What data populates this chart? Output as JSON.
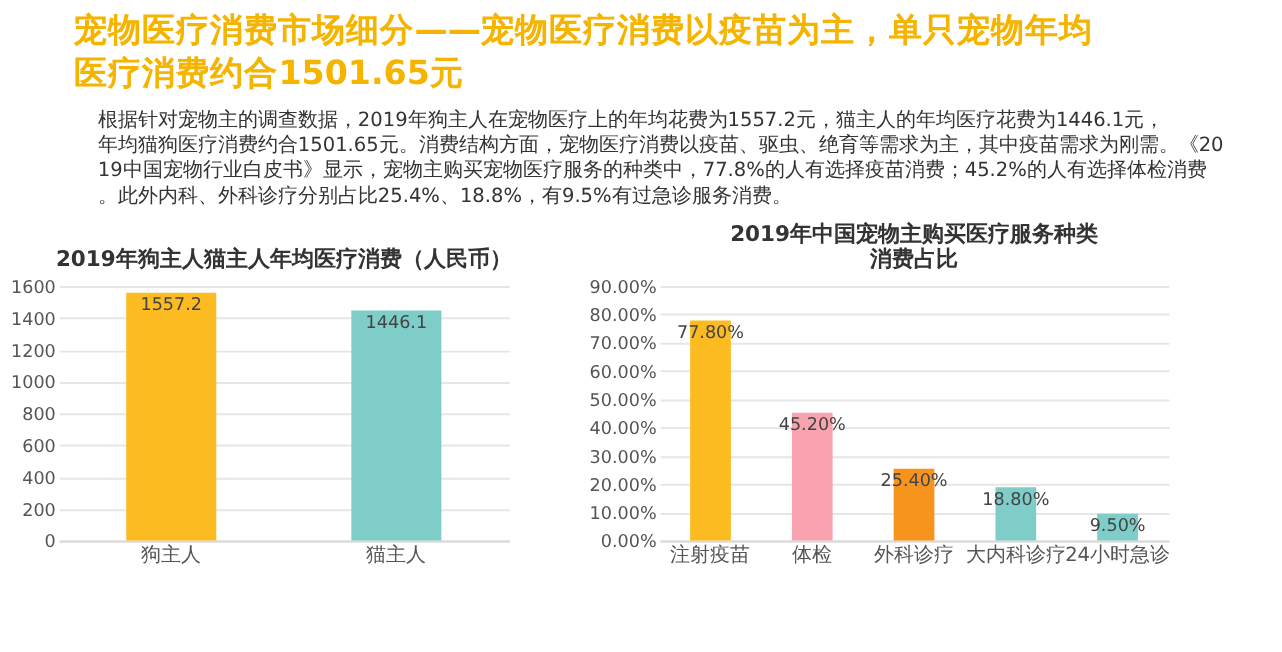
{
  "chart_data": [
    {
      "type": "other",
      "title": "宠物医疗消费市场细分——宠物医疗消费以疫苗为主，单只宠物年均医疗消费约合1501.65元",
      "color": "#f5b400",
      "annotations": [
        "根据针对宠物主的调查数据，2019年狗主人在宠物医疗上的年均花费为1557.2元，猫主人的年均医疗花费为1446.1元，年均猫狗医疗消费约合1501.65元。消费结构方面，宠物医疗消费以疫苗、驱虫、绝育等需求为主，其中疫苗需求为刚需。《2019中国宠物行业白皮书》显示，宠物主购买宠物医疗服务的种类中，77.8%的人有选择疫苗消费；45.2%的人有选择体检消费。此外内科、外科诊疗分别占比25.4%、18.8%，有9.5%有过急诊服务消费。"
      ]
    },
    {
      "type": "bar",
      "title": "2019年狗主人猫主人年均医疗消费（人民币）",
      "categories": [
        "狗主人",
        "猫主人"
      ],
      "values": [
        1557.2,
        1446.1
      ],
      "colors": [
        "#fbbb21",
        "#7ecdc8"
      ],
      "ylim": [
        0,
        1600
      ],
      "yticks": [
        0,
        200,
        400,
        600,
        800,
        1000,
        1200,
        1400,
        1600
      ],
      "grid": "y",
      "data_labels": true
    },
    {
      "type": "bar",
      "title": "2019年中国宠物主购买医疗服务种类消费占比",
      "categories": [
        "注射疫苗",
        "体检",
        "外科诊疗",
        "大内科诊疗",
        "24小时急诊"
      ],
      "values": [
        77.8,
        45.2,
        25.4,
        18.8,
        9.5
      ],
      "value_labels": [
        "77.80%",
        "45.20%",
        "25.40%",
        "18.80%",
        "9.50%"
      ],
      "colors": [
        "#fbbb21",
        "#f9a3b0",
        "#f7941d",
        "#7ecdc8",
        "#7ecdc8"
      ],
      "ylim": [
        0,
        90
      ],
      "yticks": [
        {
          "value": 0,
          "label": "0.00%"
        },
        {
          "value": 10,
          "label": "10.00%"
        },
        {
          "value": 20,
          "label": "20.00%"
        },
        {
          "value": 30,
          "label": "30.00%"
        },
        {
          "value": 40,
          "label": "40.00%"
        },
        {
          "value": 50,
          "label": "50.00%"
        },
        {
          "value": 60,
          "label": "60.00%"
        },
        {
          "value": 70,
          "label": "70.00%"
        },
        {
          "value": 80,
          "label": "80.00%"
        },
        {
          "value": 90,
          "label": "90.00%"
        }
      ],
      "grid": "y"
    }
  ]
}
